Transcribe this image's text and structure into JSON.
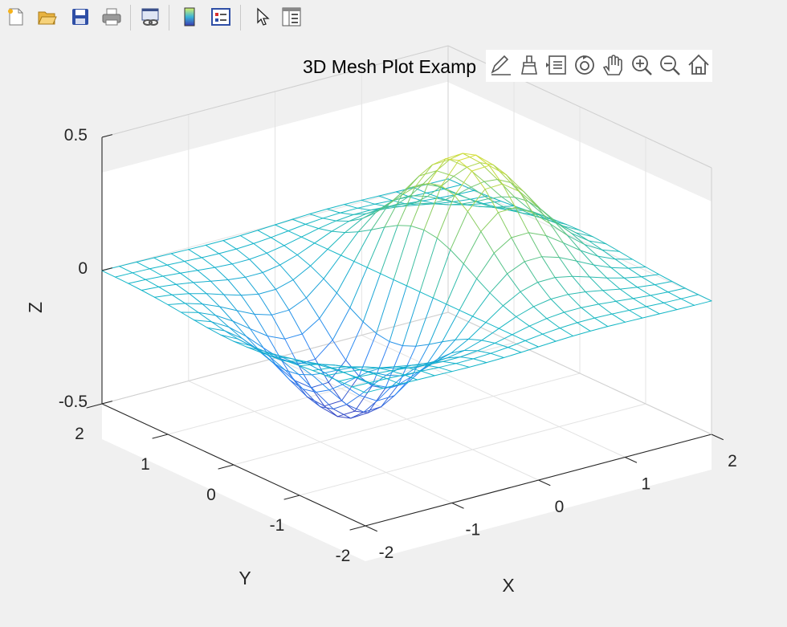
{
  "toolbar": {
    "buttons": [
      {
        "name": "new-figure",
        "icon": "new-figure-icon"
      },
      {
        "name": "open-file",
        "icon": "open-folder-icon"
      },
      {
        "name": "save",
        "icon": "save-icon"
      },
      {
        "name": "print",
        "icon": "print-icon"
      },
      {
        "name": "link-plot",
        "icon": "link-plot-icon"
      },
      {
        "name": "insert-colorbar",
        "icon": "colorbar-icon"
      },
      {
        "name": "insert-legend",
        "icon": "legend-icon"
      },
      {
        "name": "edit-plot",
        "icon": "pointer-icon"
      },
      {
        "name": "property-inspector",
        "icon": "property-inspector-icon"
      }
    ]
  },
  "axes_toolbar": {
    "icons": [
      "edit-icon",
      "brush-icon",
      "data-tips-icon",
      "rotate-3d-icon",
      "pan-icon",
      "zoom-in-icon",
      "zoom-out-icon",
      "home-icon"
    ]
  },
  "chart_data": {
    "type": "mesh",
    "title": "3D Mesh Plot Examp",
    "xlabel": "X",
    "ylabel": "Y",
    "zlabel": "Z",
    "xlim": [
      -2,
      2
    ],
    "ylim": [
      -2,
      2
    ],
    "zlim": [
      -0.5,
      0.5
    ],
    "xticks": [
      "-2",
      "-1",
      "0",
      "1",
      "2"
    ],
    "yticks": [
      "-2",
      "-1",
      "0",
      "1",
      "2"
    ],
    "zticks": [
      "-0.5",
      "0",
      "0.5"
    ],
    "function": "z = x*exp(-x^2 - y^2)",
    "grid_points": 21,
    "grid": true,
    "colormap": [
      "#3e26a8",
      "#2e86f5",
      "#12b6c7",
      "#82cb62",
      "#fde825"
    ]
  }
}
